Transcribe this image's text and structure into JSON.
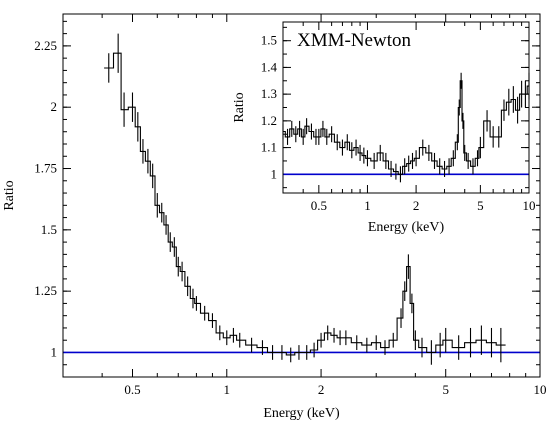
{
  "colors": {
    "data": "#000000",
    "reference": "#0000cc",
    "frame": "#000000",
    "background": "#ffffff"
  },
  "chart_data": [
    {
      "type": "line",
      "title": "",
      "xlabel": "Energy (keV)",
      "ylabel": "Ratio",
      "xscale": "log",
      "xlim": [
        0.3,
        10
      ],
      "ylim": [
        0.9,
        2.38
      ],
      "xticks": [
        {
          "v": 0.5,
          "label": "0.5"
        },
        {
          "v": 1,
          "label": "1"
        },
        {
          "v": 2,
          "label": "2"
        },
        {
          "v": 5,
          "label": "5"
        },
        {
          "v": 10,
          "label": "10"
        }
      ],
      "yticks": [
        {
          "v": 1,
          "label": "1"
        },
        {
          "v": 1.25,
          "label": "1.25"
        },
        {
          "v": 1.5,
          "label": "1.5"
        },
        {
          "v": 1.75,
          "label": "1.75"
        },
        {
          "v": 2,
          "label": "2"
        },
        {
          "v": 2.25,
          "label": "2.25"
        }
      ],
      "reference_line": 1,
      "series": [
        {
          "x": [
            0.42,
            0.45,
            0.47,
            0.5,
            0.52,
            0.54,
            0.56,
            0.58,
            0.6,
            0.62,
            0.64,
            0.66,
            0.68,
            0.7,
            0.72,
            0.75,
            0.78,
            0.8,
            0.85,
            0.9,
            0.95,
            1.0,
            1.05,
            1.1,
            1.2,
            1.3,
            1.4,
            1.5,
            1.6,
            1.7,
            1.8,
            1.9,
            2.0,
            2.1,
            2.2,
            2.3,
            2.4,
            2.6,
            2.8,
            3.0,
            3.2,
            3.4,
            3.6,
            3.7,
            3.8,
            3.9,
            4.0,
            4.2,
            4.5,
            4.8,
            5.0,
            5.5,
            6.0,
            6.5,
            7.0,
            7.5
          ],
          "y": [
            2.16,
            2.22,
            1.99,
            2.0,
            1.92,
            1.82,
            1.78,
            1.72,
            1.6,
            1.57,
            1.52,
            1.45,
            1.43,
            1.35,
            1.33,
            1.27,
            1.22,
            1.2,
            1.16,
            1.13,
            1.08,
            1.06,
            1.07,
            1.05,
            1.03,
            1.02,
            1.0,
            1.0,
            0.99,
            1.0,
            1.0,
            1.01,
            1.05,
            1.08,
            1.07,
            1.06,
            1.06,
            1.04,
            1.03,
            1.04,
            1.02,
            1.05,
            1.14,
            1.25,
            1.35,
            1.2,
            1.05,
            1.02,
            1.0,
            1.03,
            1.05,
            1.02,
            1.04,
            1.05,
            1.04,
            1.03
          ],
          "err": [
            0.06,
            0.08,
            0.07,
            0.06,
            0.06,
            0.05,
            0.05,
            0.05,
            0.05,
            0.04,
            0.04,
            0.04,
            0.04,
            0.04,
            0.04,
            0.04,
            0.04,
            0.03,
            0.03,
            0.03,
            0.03,
            0.03,
            0.03,
            0.03,
            0.03,
            0.03,
            0.03,
            0.03,
            0.03,
            0.03,
            0.03,
            0.03,
            0.03,
            0.03,
            0.03,
            0.03,
            0.03,
            0.03,
            0.03,
            0.03,
            0.03,
            0.03,
            0.04,
            0.04,
            0.05,
            0.04,
            0.04,
            0.04,
            0.05,
            0.05,
            0.05,
            0.05,
            0.06,
            0.06,
            0.06,
            0.07
          ]
        }
      ]
    },
    {
      "type": "line",
      "title": "XMM-Newton",
      "xlabel": "Energy (keV)",
      "ylabel": "Ratio",
      "xscale": "log",
      "xlim": [
        0.3,
        10
      ],
      "ylim": [
        0.93,
        1.57
      ],
      "xticks": [
        {
          "v": 0.5,
          "label": "0.5"
        },
        {
          "v": 1,
          "label": "1"
        },
        {
          "v": 2,
          "label": "2"
        },
        {
          "v": 5,
          "label": "5"
        },
        {
          "v": 10,
          "label": "10"
        }
      ],
      "yticks": [
        {
          "v": 1,
          "label": "1"
        },
        {
          "v": 1.1,
          "label": "1.1"
        },
        {
          "v": 1.2,
          "label": "1.2"
        },
        {
          "v": 1.3,
          "label": "1.3"
        },
        {
          "v": 1.4,
          "label": "1.4"
        },
        {
          "v": 1.5,
          "label": "1.5"
        }
      ],
      "reference_line": 1,
      "series": [
        {
          "x": [
            0.3,
            0.32,
            0.34,
            0.36,
            0.38,
            0.4,
            0.42,
            0.45,
            0.48,
            0.5,
            0.53,
            0.56,
            0.6,
            0.65,
            0.7,
            0.75,
            0.8,
            0.85,
            0.9,
            0.95,
            1.0,
            1.1,
            1.2,
            1.3,
            1.4,
            1.5,
            1.6,
            1.7,
            1.8,
            1.9,
            2.0,
            2.2,
            2.4,
            2.6,
            2.8,
            3.0,
            3.2,
            3.4,
            3.6,
            3.7,
            3.8,
            3.9,
            4.0,
            4.2,
            4.5,
            4.8,
            5.0,
            5.5,
            6.0,
            6.5,
            7.0,
            7.5,
            8.0,
            8.5,
            9.0,
            9.5,
            10.0
          ],
          "y": [
            1.16,
            1.14,
            1.17,
            1.15,
            1.17,
            1.14,
            1.18,
            1.16,
            1.14,
            1.14,
            1.17,
            1.14,
            1.15,
            1.12,
            1.1,
            1.12,
            1.09,
            1.1,
            1.08,
            1.07,
            1.06,
            1.05,
            1.08,
            1.05,
            1.02,
            1.01,
            1.0,
            1.03,
            1.04,
            1.05,
            1.06,
            1.1,
            1.08,
            1.05,
            1.03,
            1.02,
            1.03,
            1.06,
            1.12,
            1.25,
            1.35,
            1.2,
            1.08,
            1.05,
            1.03,
            1.06,
            1.1,
            1.2,
            1.14,
            1.14,
            1.24,
            1.27,
            1.28,
            1.24,
            1.3,
            1.3,
            1.33
          ],
          "err": [
            0.03,
            0.03,
            0.03,
            0.03,
            0.03,
            0.03,
            0.03,
            0.03,
            0.03,
            0.03,
            0.03,
            0.03,
            0.03,
            0.03,
            0.03,
            0.03,
            0.03,
            0.03,
            0.03,
            0.03,
            0.03,
            0.03,
            0.03,
            0.03,
            0.03,
            0.03,
            0.03,
            0.03,
            0.03,
            0.03,
            0.03,
            0.03,
            0.03,
            0.03,
            0.03,
            0.03,
            0.03,
            0.03,
            0.03,
            0.03,
            0.03,
            0.03,
            0.03,
            0.03,
            0.03,
            0.03,
            0.04,
            0.04,
            0.04,
            0.04,
            0.04,
            0.05,
            0.05,
            0.05,
            0.05,
            0.05,
            0.05
          ]
        }
      ]
    }
  ]
}
